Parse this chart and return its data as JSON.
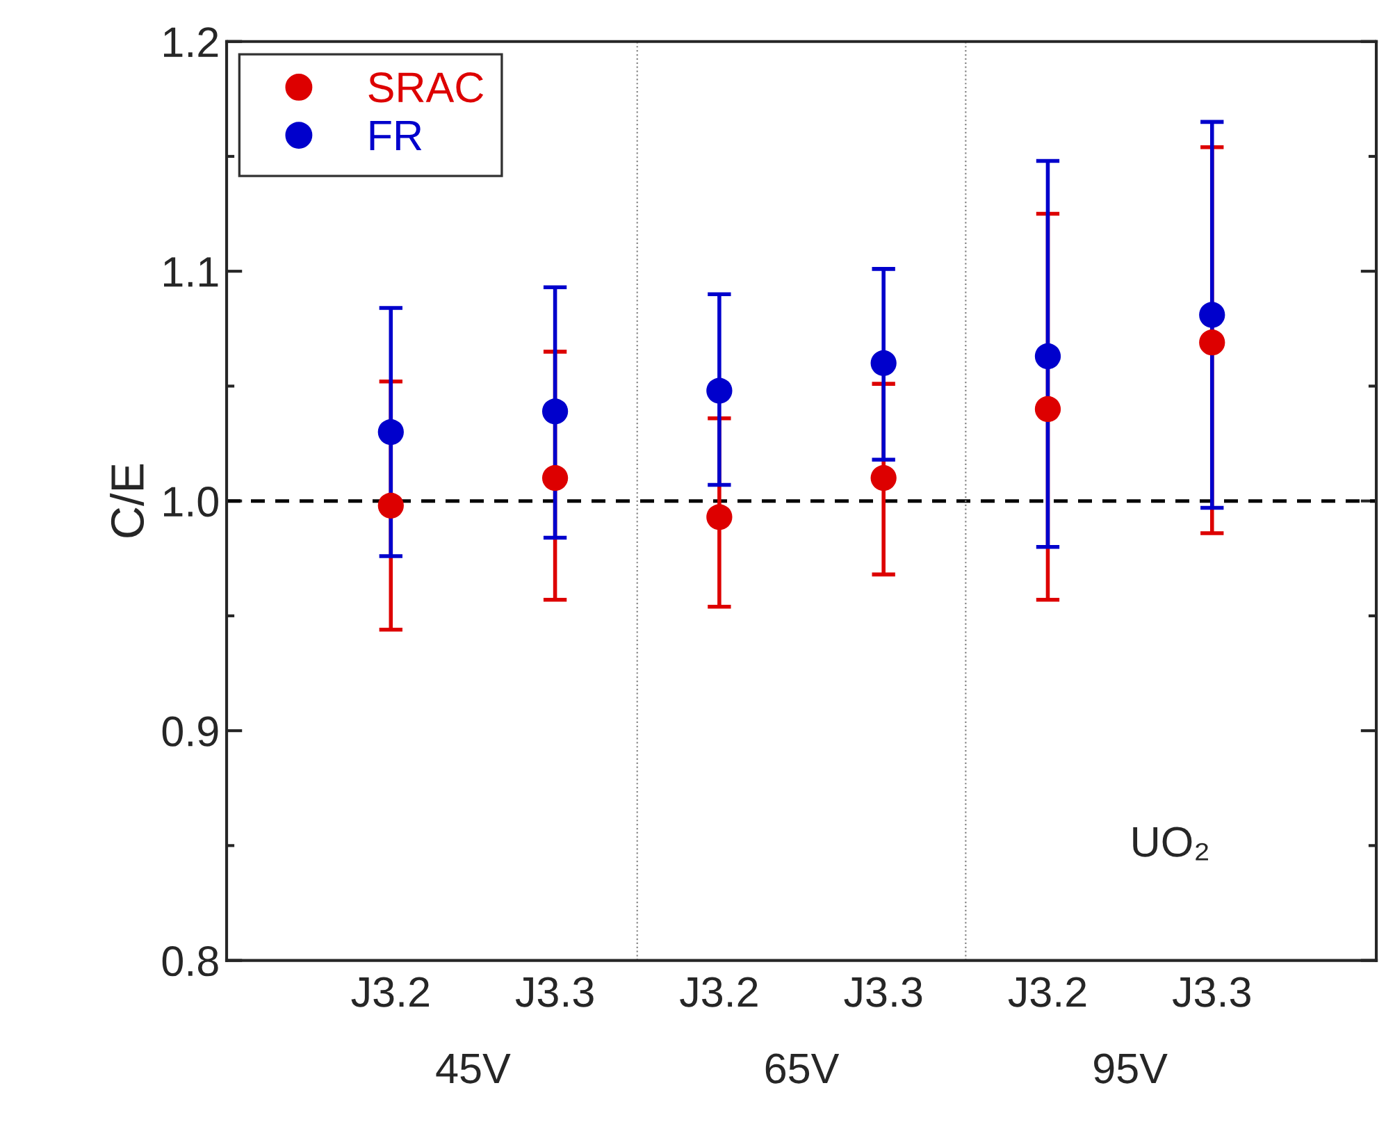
{
  "chart_data": {
    "type": "scatter",
    "ylabel": "C/E",
    "categories": [
      "J3.2",
      "J3.3",
      "J3.2",
      "J3.3",
      "J3.2",
      "J3.3"
    ],
    "series": [
      {
        "name": "SRAC",
        "color": "#dd0000",
        "values": [
          0.998,
          1.01,
          0.993,
          1.01,
          1.04,
          1.069
        ],
        "errors": [
          [
            0.944,
            1.052
          ],
          [
            0.957,
            1.065
          ],
          [
            0.954,
            1.036
          ],
          [
            0.968,
            1.051
          ],
          [
            0.957,
            1.125
          ],
          [
            0.986,
            1.154
          ]
        ]
      },
      {
        "name": "FR",
        "color": "#0000cc",
        "values": [
          1.03,
          1.039,
          1.048,
          1.06,
          1.063,
          1.081
        ],
        "errors": [
          [
            0.976,
            1.084
          ],
          [
            0.984,
            1.093
          ],
          [
            1.007,
            1.09
          ],
          [
            1.018,
            1.101
          ],
          [
            0.98,
            1.148
          ],
          [
            0.997,
            1.165
          ]
        ]
      }
    ],
    "ylim": [
      0.8,
      1.2
    ],
    "yticks": [
      {
        "value": 0.8,
        "label": "0.8"
      },
      {
        "value": 0.9,
        "label": "0.9"
      },
      {
        "value": 1.0,
        "label": "1.0"
      },
      {
        "value": 1.1,
        "label": "1.1"
      },
      {
        "value": 1.2,
        "label": "1.2"
      }
    ],
    "ref_lines": [
      {
        "axis": "y",
        "value": 1.0,
        "color": "#000000",
        "line_style": "dashed"
      }
    ],
    "annotations": [
      "45V",
      "65V",
      "95V",
      "UO₂"
    ],
    "marker": "circle",
    "legend": "top left",
    "grid": false
  }
}
